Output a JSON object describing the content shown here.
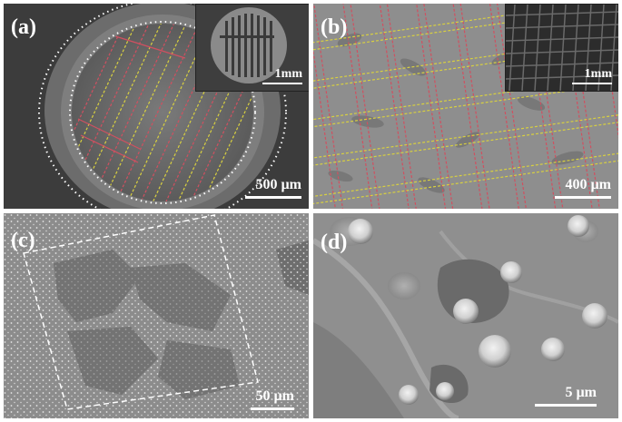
{
  "panels": [
    {
      "label": "(a)",
      "scale": "500 µm",
      "inset_scale": "1mm"
    },
    {
      "label": "(b)",
      "scale": "400 µm",
      "inset_scale": "1mm"
    },
    {
      "label": "(c)",
      "scale": "50 µm"
    },
    {
      "label": "(d)",
      "scale": "5 µm"
    }
  ],
  "colors": {
    "guide_red": "#d05060",
    "guide_yellow": "#d8d040",
    "dotted_white": "#ffffff"
  }
}
